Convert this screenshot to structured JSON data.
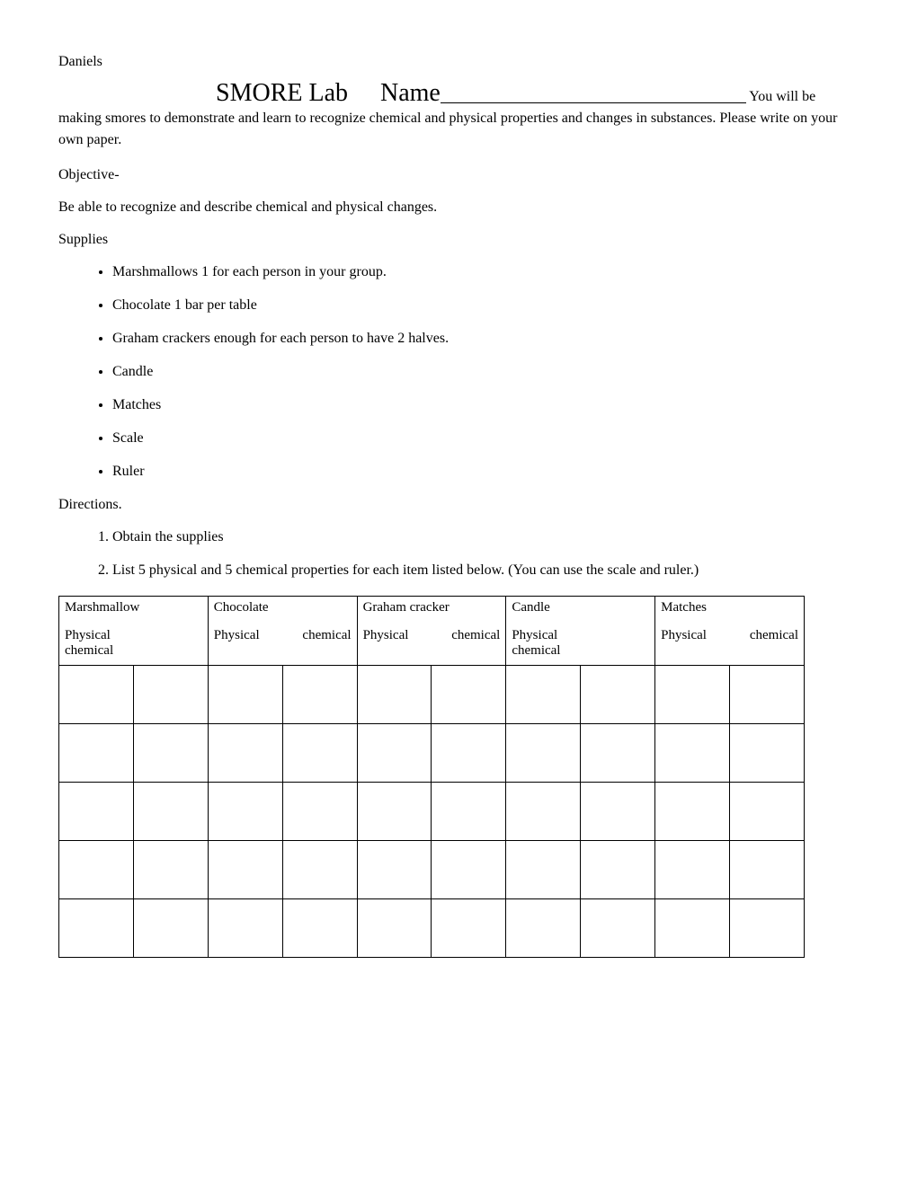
{
  "header_name": "Daniels",
  "title": "SMORE Lab",
  "name_label": "Name",
  "intro_tail": " You will be",
  "intro_body": "making smores to demonstrate and learn to recognize chemical and physical properties and changes in substances. Please write on your own paper.",
  "objective_label": "Objective-",
  "objective_text": "Be able to recognize and describe chemical and physical changes.",
  "supplies_label": "Supplies",
  "supplies": [
    "Marshmallows 1 for each person in your group.",
    "Chocolate 1 bar per table",
    "Graham crackers enough for each person to have 2 halves.",
    "Candle",
    "Matches",
    "Scale",
    "Ruler"
  ],
  "directions_label": "Directions.",
  "directions": [
    "Obtain the supplies",
    "List 5 physical and 5 chemical properties for each item listed below. (You can use the scale and ruler.)"
  ],
  "table": {
    "columns": [
      {
        "item": "Marshmallow",
        "sub1": "Physical",
        "sub2": "chemical",
        "layout": "stacked"
      },
      {
        "item": "Chocolate",
        "sub1": "Physical",
        "sub2": "chemical",
        "layout": "spread"
      },
      {
        "item": "Graham cracker",
        "sub1": "Physical",
        "sub2": "chemical",
        "layout": "spread"
      },
      {
        "item": "Candle",
        "sub1": "Physical",
        "sub2": "chemical",
        "layout": "stacked"
      },
      {
        "item": "Matches",
        "sub1": "Physical",
        "sub2": "chemical",
        "layout": "spread"
      }
    ],
    "blank_rows": 5,
    "border_color": "#000000",
    "background_color": "#ffffff"
  }
}
